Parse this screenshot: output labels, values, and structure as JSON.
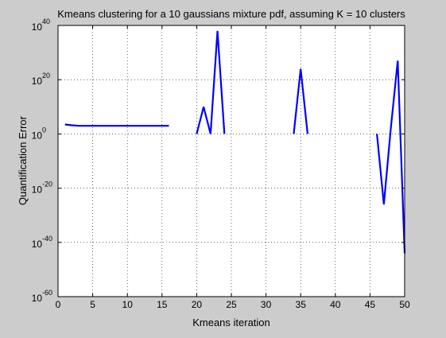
{
  "chart_data": {
    "type": "line",
    "title": "Kmeans clustering for a 10 gaussians mixture pdf, assuming K = 10 clusters",
    "xlabel": "Kmeans iteration",
    "ylabel": "Quantification Error",
    "xlim": [
      0,
      50
    ],
    "ylim_exponent": [
      -60,
      40
    ],
    "yscale": "log",
    "grid": true,
    "x_ticks": [
      0,
      5,
      10,
      15,
      20,
      25,
      30,
      35,
      40,
      45,
      50
    ],
    "y_tick_exponents": [
      -60,
      -40,
      -20,
      0,
      20,
      40
    ],
    "y_tick_base": "10",
    "line_color": "#0000ff",
    "series": [
      {
        "segments": [
          {
            "x": [
              1,
              2,
              3,
              4,
              5,
              6,
              7,
              8,
              9,
              10,
              11,
              12,
              13,
              14,
              15,
              16
            ],
            "log10_y": [
              3.5,
              3.2,
              3.0,
              3.0,
              3.0,
              3.0,
              3.0,
              3.0,
              3.0,
              3.0,
              3.0,
              3.0,
              3.0,
              3.0,
              3.0,
              3.0
            ]
          },
          {
            "x": [
              20,
              21,
              22,
              23,
              24
            ],
            "log10_y": [
              0,
              10,
              0,
              38,
              0
            ]
          },
          {
            "x": [
              34,
              35,
              36
            ],
            "log10_y": [
              0,
              24,
              0
            ]
          },
          {
            "x": [
              46,
              47,
              48,
              49,
              50
            ],
            "log10_y": [
              0,
              -26,
              2,
              27,
              -44
            ]
          }
        ]
      }
    ]
  }
}
